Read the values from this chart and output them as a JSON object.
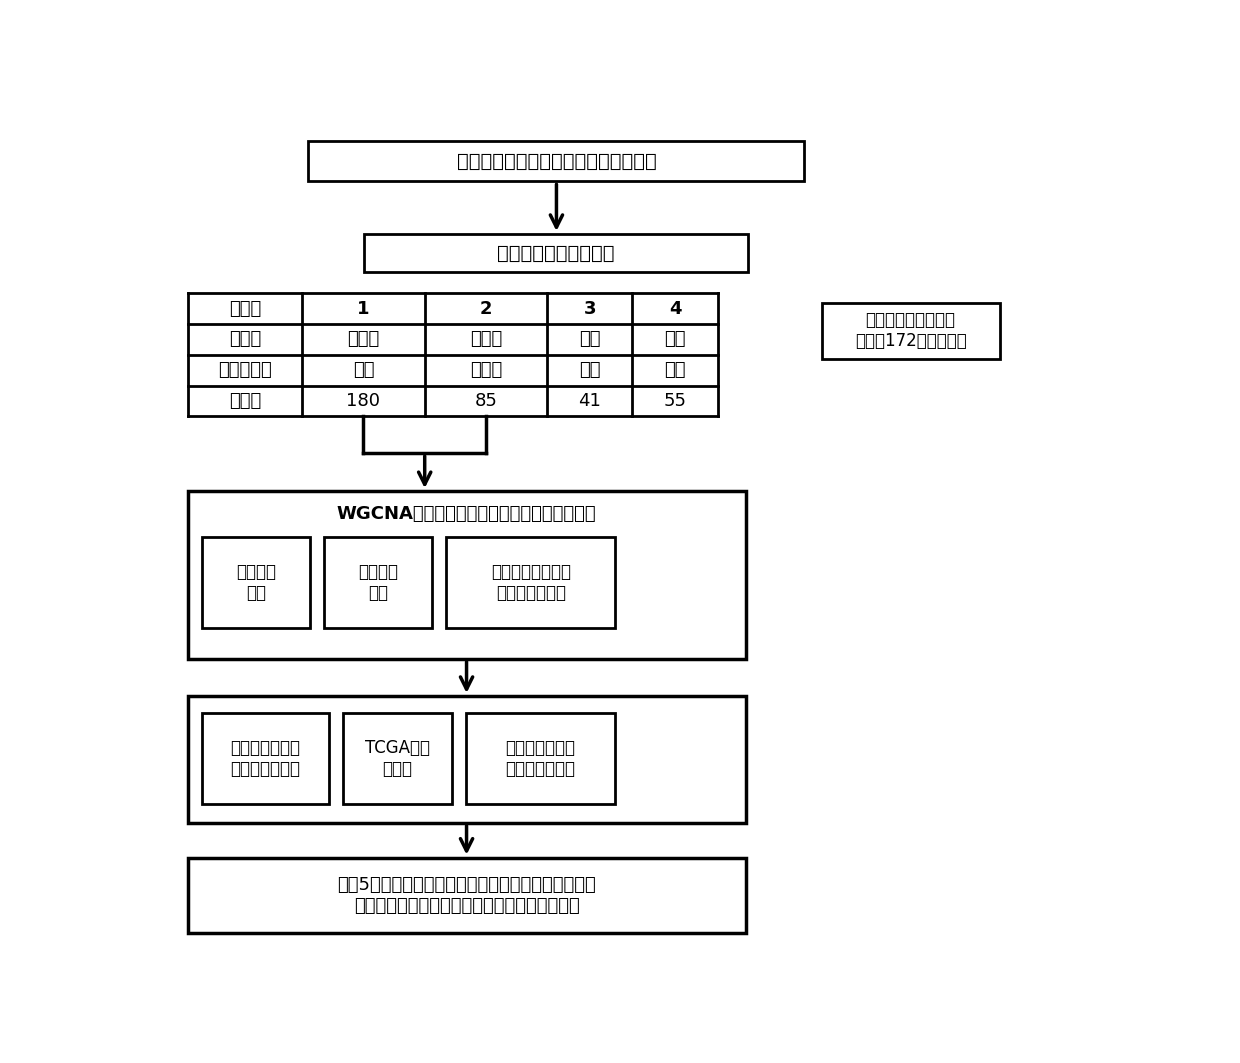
{
  "bg_color": "#ffffff",
  "box1_text": "提高甲状腺癌细针穿刺活检样本的诊断",
  "box2_text": "细针穿刺活检样本筛选",
  "table_headers": [
    "病例组",
    "1",
    "2",
    "3",
    "4"
  ],
  "table_row1": [
    "细胞学",
    "不确定",
    "不确定",
    "良性",
    "恶性"
  ],
  "table_row2": [
    "组织病理学",
    "良性",
    "不确定",
    "良性",
    "恶性"
  ],
  "table_row3": [
    "病例数",
    "180",
    "85",
    "41",
    "55"
  ],
  "side_box_text": "基因表达谱数据处理\n（检测172个靶基因）",
  "wgcna_box_title": "WGCNA筛选与恶性组织病理学相关的特征基因",
  "sub_box1_text": "构建基因\n网络",
  "sub_box2_text": "检测相关\n模块",
  "sub_box3_text": "识别与组织学特征\n显著相关的基因",
  "sub_box4_text": "病例组特征基因\n表达情况的比较",
  "sub_box5_text": "TCGA数据\n集验证",
  "sub_box6_text": "基因本体论代谢\n通路和网络探索",
  "box5_line1": "发现5种新的潜在生物标志物以增强恶性甲状腺癌的诊",
  "box5_line2": "断，并探索与恶性甲状腺癌相关的关键功能途径",
  "font_size_large": 14,
  "font_size_medium": 12,
  "font_size_small": 11
}
